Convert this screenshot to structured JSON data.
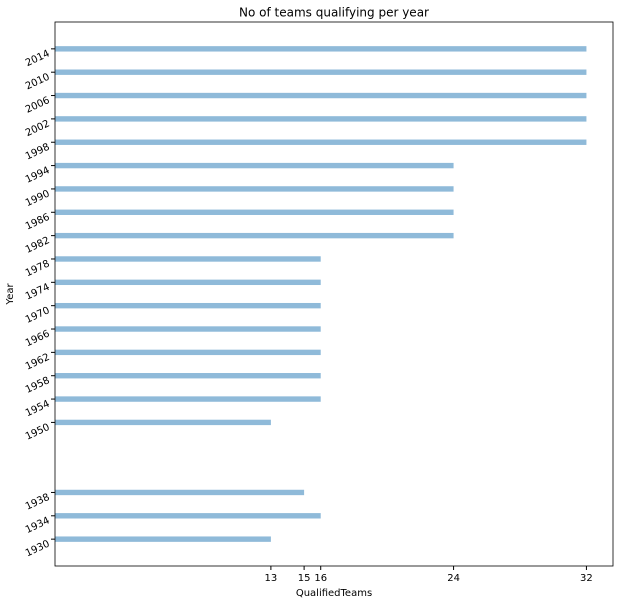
{
  "chart_data": {
    "type": "barh",
    "title": "No of teams qualifying per year",
    "x_label": "QualifiedTeams",
    "y_label": "Year",
    "y": [
      1930,
      1934,
      1938,
      1950,
      1954,
      1958,
      1962,
      1966,
      1970,
      1974,
      1978,
      1982,
      1986,
      1990,
      1994,
      1998,
      2002,
      2006,
      2010,
      2014
    ],
    "values": [
      13,
      16,
      15,
      13,
      16,
      16,
      16,
      16,
      16,
      16,
      16,
      24,
      24,
      24,
      24,
      32,
      32,
      32,
      32,
      32
    ],
    "color": "#8fbad9",
    "xlim": [
      0,
      33.6
    ],
    "xticks": [
      13,
      15,
      16,
      24,
      32
    ],
    "ylim": [
      1925.4,
      2018.6
    ],
    "yticks": [
      1930,
      1934,
      1938,
      1950,
      1954,
      1958,
      1962,
      1966,
      1970,
      1974,
      1978,
      1982,
      1986,
      1990,
      1994,
      1998,
      2002,
      2006,
      2010,
      2014
    ]
  }
}
